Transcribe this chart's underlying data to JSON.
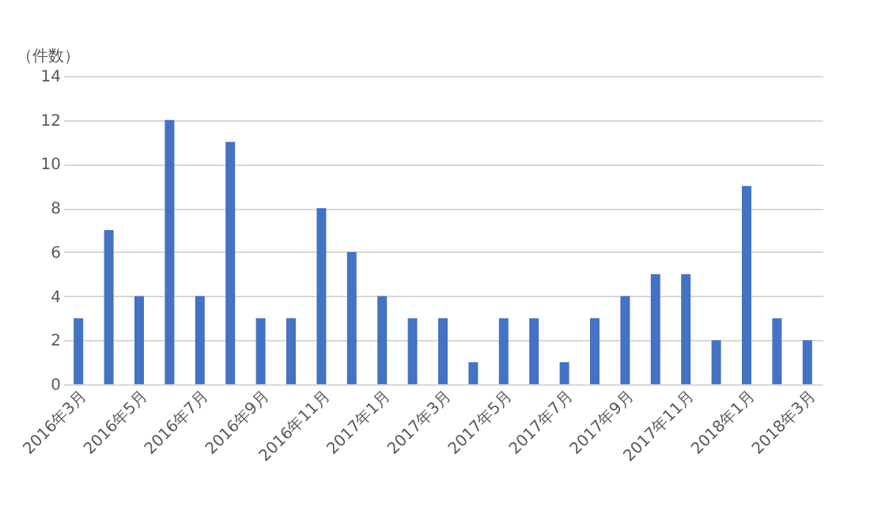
{
  "chart_data": {
    "type": "bar",
    "ylabel": "（件数）",
    "categories": [
      "2016年3月",
      null,
      "2016年5月",
      null,
      "2016年7月",
      null,
      "2016年9月",
      null,
      "2016年11月",
      null,
      "2017年1月",
      null,
      "2017年3月",
      null,
      "2017年5月",
      null,
      "2017年7月",
      null,
      "2017年9月",
      null,
      "2017年11月",
      null,
      "2018年1月",
      null,
      "2018年3月"
    ],
    "values": [
      3,
      7,
      4,
      12,
      4,
      11,
      3,
      3,
      8,
      6,
      4,
      3,
      3,
      1,
      3,
      3,
      1,
      3,
      4,
      5,
      5,
      2,
      9,
      3,
      2
    ],
    "color": "#4472c4",
    "ylim": [
      0,
      14
    ],
    "yticks": [
      0,
      2,
      4,
      6,
      8,
      10,
      12,
      14
    ],
    "grid": "y"
  }
}
